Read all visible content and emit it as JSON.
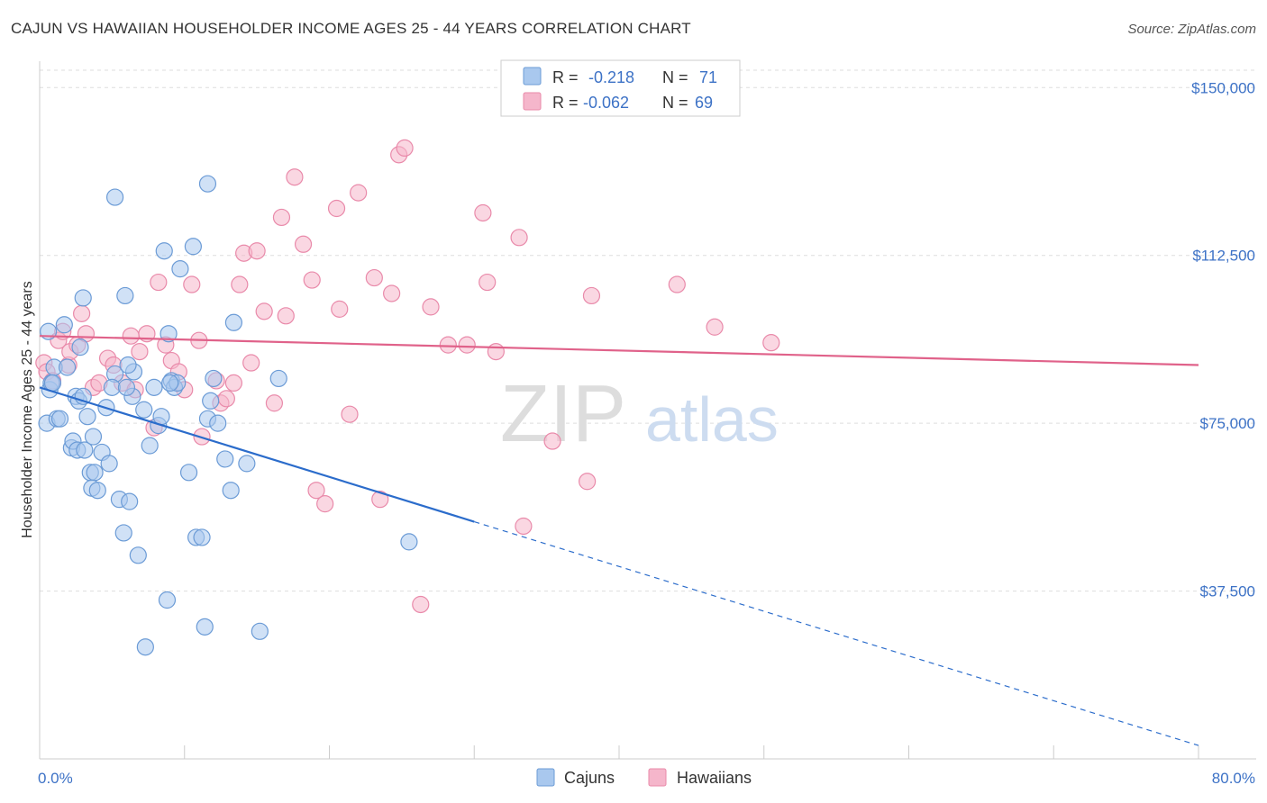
{
  "header": {
    "title": "CAJUN VS HAWAIIAN HOUSEHOLDER INCOME AGES 25 - 44 YEARS CORRELATION CHART",
    "source": "Source: ZipAtlas.com"
  },
  "watermark": {
    "zip": "ZIP",
    "atlas": "atlas"
  },
  "legend": {
    "rows": [
      {
        "r_label": "R =",
        "r_value": "-0.218",
        "n_label": "N =",
        "n_value": "71"
      },
      {
        "r_label": "R =",
        "r_value": "-0.062",
        "n_label": "N =",
        "n_value": "69"
      }
    ]
  },
  "colors": {
    "blue_fill": "#a9c8ee",
    "blue_stroke": "#6b9bd6",
    "blue_line": "#2b6ccb",
    "pink_fill": "#f5b6cb",
    "pink_stroke": "#e98aaa",
    "pink_line": "#e0628a",
    "axis_label": "#3d72c6"
  },
  "chart_data": {
    "type": "scatter",
    "title": "CAJUN VS HAWAIIAN HOUSEHOLDER INCOME AGES 25 - 44 YEARS CORRELATION CHART",
    "xlabel": "",
    "ylabel": "Householder Income Ages 25 - 44 years",
    "xlim": [
      0,
      80
    ],
    "ylim": [
      0,
      157500
    ],
    "x_tick_labels": [
      "0.0%",
      "80.0%"
    ],
    "y_ticks": [
      37500,
      75000,
      112500,
      150000
    ],
    "y_tick_labels": [
      "$37,500",
      "$75,000",
      "$112,500",
      "$150,000"
    ],
    "grid": true,
    "legend_position": "top-center",
    "series": [
      {
        "name": "Cajuns",
        "r": -0.218,
        "n": 71,
        "trend": {
          "x_start": 0.0,
          "y_start": 83000,
          "x_solid_end": 30.0,
          "y_solid_end": 53000,
          "x_end": 80.0,
          "y_end": 3000
        },
        "points": [
          [
            0.6,
            95500
          ],
          [
            0.7,
            82500
          ],
          [
            0.8,
            84000
          ],
          [
            1.0,
            87500
          ],
          [
            0.5,
            75000
          ],
          [
            0.9,
            84000
          ],
          [
            1.2,
            76000
          ],
          [
            1.4,
            76000
          ],
          [
            1.7,
            97000
          ],
          [
            1.9,
            87500
          ],
          [
            2.2,
            69500
          ],
          [
            2.3,
            71000
          ],
          [
            2.5,
            81000
          ],
          [
            2.7,
            80000
          ],
          [
            2.6,
            69000
          ],
          [
            3.0,
            81000
          ],
          [
            3.3,
            76500
          ],
          [
            3.1,
            69000
          ],
          [
            3.0,
            103000
          ],
          [
            2.8,
            92000
          ],
          [
            3.5,
            64000
          ],
          [
            3.7,
            72000
          ],
          [
            3.8,
            64000
          ],
          [
            3.6,
            60500
          ],
          [
            4.0,
            60000
          ],
          [
            4.3,
            68500
          ],
          [
            4.6,
            78500
          ],
          [
            4.8,
            66000
          ],
          [
            5.2,
            86000
          ],
          [
            5.5,
            58000
          ],
          [
            5.8,
            50500
          ],
          [
            5.2,
            125500
          ],
          [
            5.0,
            83000
          ],
          [
            5.9,
            103500
          ],
          [
            6.2,
            57500
          ],
          [
            6.4,
            81000
          ],
          [
            6.5,
            86500
          ],
          [
            6.1,
            88000
          ],
          [
            6.8,
            45500
          ],
          [
            6.0,
            83000
          ],
          [
            7.2,
            78000
          ],
          [
            7.6,
            70000
          ],
          [
            7.9,
            83000
          ],
          [
            8.2,
            74500
          ],
          [
            8.4,
            76500
          ],
          [
            8.8,
            35500
          ],
          [
            8.9,
            95000
          ],
          [
            8.6,
            113500
          ],
          [
            9.1,
            84500
          ],
          [
            9.3,
            83000
          ],
          [
            9.5,
            84000
          ],
          [
            9.0,
            84000
          ],
          [
            9.7,
            109500
          ],
          [
            10.3,
            64000
          ],
          [
            10.6,
            114500
          ],
          [
            10.8,
            49500
          ],
          [
            11.2,
            49500
          ],
          [
            11.4,
            29500
          ],
          [
            11.6,
            76000
          ],
          [
            11.8,
            80000
          ],
          [
            12.0,
            85000
          ],
          [
            11.6,
            128500
          ],
          [
            12.3,
            75000
          ],
          [
            12.8,
            67000
          ],
          [
            13.2,
            60000
          ],
          [
            13.4,
            97500
          ],
          [
            14.3,
            66000
          ],
          [
            15.2,
            28500
          ],
          [
            16.5,
            85000
          ],
          [
            25.5,
            48500
          ],
          [
            7.3,
            25000
          ]
        ]
      },
      {
        "name": "Hawaiians",
        "r": -0.062,
        "n": 69,
        "trend": {
          "x_start": 0.0,
          "y_start": 94500,
          "x_end": 80.0,
          "y_end": 88000
        },
        "points": [
          [
            0.3,
            88500
          ],
          [
            0.5,
            86500
          ],
          [
            0.9,
            84500
          ],
          [
            1.3,
            93500
          ],
          [
            1.6,
            95500
          ],
          [
            2.0,
            88000
          ],
          [
            2.1,
            91000
          ],
          [
            2.6,
            92500
          ],
          [
            2.9,
            99500
          ],
          [
            3.2,
            95000
          ],
          [
            3.7,
            83000
          ],
          [
            4.1,
            84000
          ],
          [
            4.7,
            89500
          ],
          [
            5.1,
            88000
          ],
          [
            5.7,
            84000
          ],
          [
            6.3,
            94500
          ],
          [
            6.6,
            82500
          ],
          [
            6.9,
            91000
          ],
          [
            7.4,
            95000
          ],
          [
            7.9,
            74000
          ],
          [
            8.2,
            106500
          ],
          [
            8.7,
            92500
          ],
          [
            9.1,
            89000
          ],
          [
            9.6,
            86500
          ],
          [
            10.0,
            82500
          ],
          [
            10.5,
            106000
          ],
          [
            11.0,
            93500
          ],
          [
            11.2,
            72000
          ],
          [
            12.2,
            84500
          ],
          [
            12.5,
            79500
          ],
          [
            12.9,
            80500
          ],
          [
            13.4,
            84000
          ],
          [
            13.8,
            106000
          ],
          [
            14.1,
            113000
          ],
          [
            14.6,
            88500
          ],
          [
            15.0,
            113500
          ],
          [
            15.5,
            100000
          ],
          [
            16.2,
            79500
          ],
          [
            16.7,
            121000
          ],
          [
            17.0,
            99000
          ],
          [
            17.6,
            130000
          ],
          [
            18.2,
            115000
          ],
          [
            18.8,
            107000
          ],
          [
            19.1,
            60000
          ],
          [
            19.7,
            57000
          ],
          [
            20.5,
            123000
          ],
          [
            20.7,
            100500
          ],
          [
            21.4,
            77000
          ],
          [
            22.0,
            126500
          ],
          [
            23.1,
            107500
          ],
          [
            23.5,
            58000
          ],
          [
            24.3,
            104000
          ],
          [
            24.8,
            135000
          ],
          [
            25.2,
            136500
          ],
          [
            26.3,
            34500
          ],
          [
            27.0,
            101000
          ],
          [
            28.2,
            92500
          ],
          [
            29.5,
            92500
          ],
          [
            30.6,
            122000
          ],
          [
            30.9,
            106500
          ],
          [
            31.5,
            91000
          ],
          [
            33.1,
            116500
          ],
          [
            33.4,
            52000
          ],
          [
            35.4,
            71000
          ],
          [
            37.8,
            62000
          ],
          [
            38.1,
            103500
          ],
          [
            44.0,
            106000
          ],
          [
            46.6,
            96500
          ],
          [
            50.5,
            93000
          ]
        ]
      }
    ]
  }
}
